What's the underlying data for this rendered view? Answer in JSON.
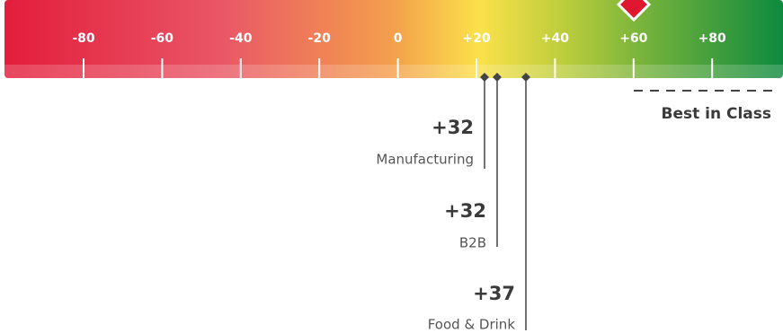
{
  "scale": {
    "ticks": [
      "-80",
      "-60",
      "-40",
      "-20",
      "0",
      "+20",
      "+40",
      "+60",
      "+80"
    ]
  },
  "best_in_class": {
    "label": "Best in Class"
  },
  "markers": [
    {
      "value": "+32",
      "label": "Manufacturing"
    },
    {
      "value": "+32",
      "label": "B2B"
    },
    {
      "value": "+37",
      "label": "Food & Drink"
    }
  ]
}
